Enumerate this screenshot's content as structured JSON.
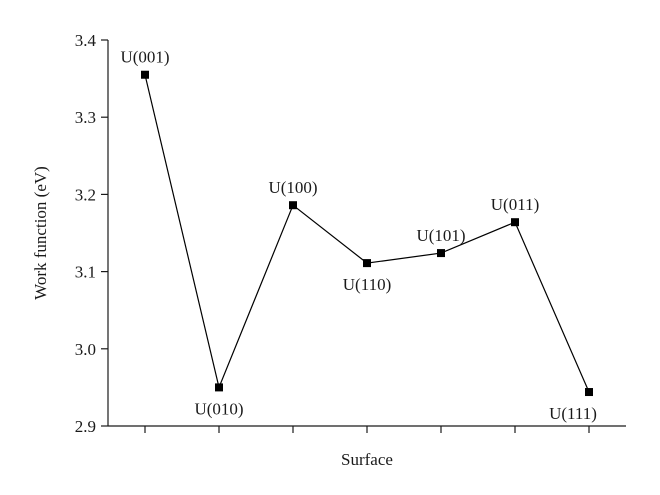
{
  "chart_data": {
    "type": "line",
    "x_label": "Surface",
    "y_label": "Work function (eV)",
    "categories": [
      "U(001)",
      "U(010)",
      "U(100)",
      "U(110)",
      "U(101)",
      "U(011)",
      "U(111)"
    ],
    "values": [
      3.355,
      2.95,
      3.186,
      3.111,
      3.124,
      3.164,
      2.944
    ],
    "color": "#000000",
    "ylim": [
      2.9,
      3.4
    ],
    "yticks": [
      2.9,
      {
        "value": 3.0,
        "label": "3.0"
      },
      3.1,
      3.2,
      3.3,
      3.4
    ],
    "grid": false
  }
}
